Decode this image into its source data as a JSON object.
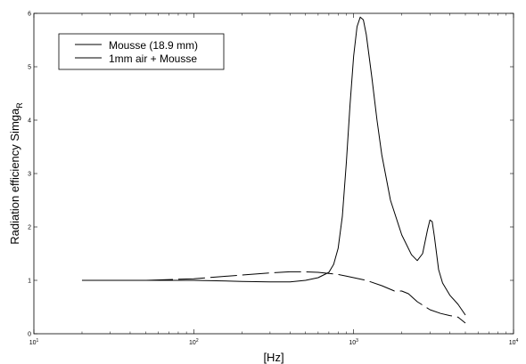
{
  "chart_data": {
    "type": "line",
    "title": "",
    "xlabel": "[Hz]",
    "ylabel": "Radiation efficiency Simga",
    "ylabel_subscript": "R",
    "xscale": "log",
    "xlim": [
      10,
      10000
    ],
    "ylim": [
      0,
      6
    ],
    "x_ticks": [
      {
        "base": "10",
        "exp": "1"
      },
      {
        "base": "10",
        "exp": "2"
      },
      {
        "base": "10",
        "exp": "3"
      },
      {
        "base": "10",
        "exp": "4"
      }
    ],
    "y_ticks": [
      "0",
      "1",
      "2",
      "3",
      "4",
      "5",
      "6"
    ],
    "grid": false,
    "legend_position": "top-left",
    "series": [
      {
        "name": "Mousse (18.9 mm)",
        "style": "solid",
        "x": [
          20,
          50,
          100,
          150,
          200,
          300,
          400,
          500,
          600,
          700,
          750,
          800,
          850,
          900,
          950,
          1000,
          1050,
          1100,
          1150,
          1200,
          1300,
          1400,
          1500,
          1700,
          2000,
          2300,
          2500,
          2700,
          2900,
          3000,
          3100,
          3200,
          3400,
          3600,
          4000,
          4500,
          5000
        ],
        "y": [
          1.0,
          1.0,
          1.0,
          0.99,
          0.98,
          0.97,
          0.97,
          1.0,
          1.05,
          1.15,
          1.3,
          1.6,
          2.2,
          3.2,
          4.3,
          5.2,
          5.75,
          5.93,
          5.88,
          5.6,
          4.8,
          4.0,
          3.35,
          2.5,
          1.85,
          1.48,
          1.37,
          1.5,
          1.95,
          2.13,
          2.1,
          1.82,
          1.2,
          0.95,
          0.72,
          0.55,
          0.35
        ]
      },
      {
        "name": "1mm air + Mousse",
        "style": "dashed",
        "x": [
          20,
          50,
          100,
          150,
          200,
          300,
          400,
          500,
          600,
          700,
          800,
          900,
          1000,
          1200,
          1500,
          1800,
          2000,
          2200,
          2500,
          3000,
          3500,
          4000,
          4500,
          5000
        ],
        "y": [
          1.0,
          1.0,
          1.03,
          1.07,
          1.1,
          1.14,
          1.16,
          1.16,
          1.15,
          1.13,
          1.11,
          1.08,
          1.05,
          1.0,
          0.9,
          0.8,
          0.8,
          0.75,
          0.6,
          0.45,
          0.38,
          0.34,
          0.31,
          0.2
        ]
      }
    ]
  }
}
